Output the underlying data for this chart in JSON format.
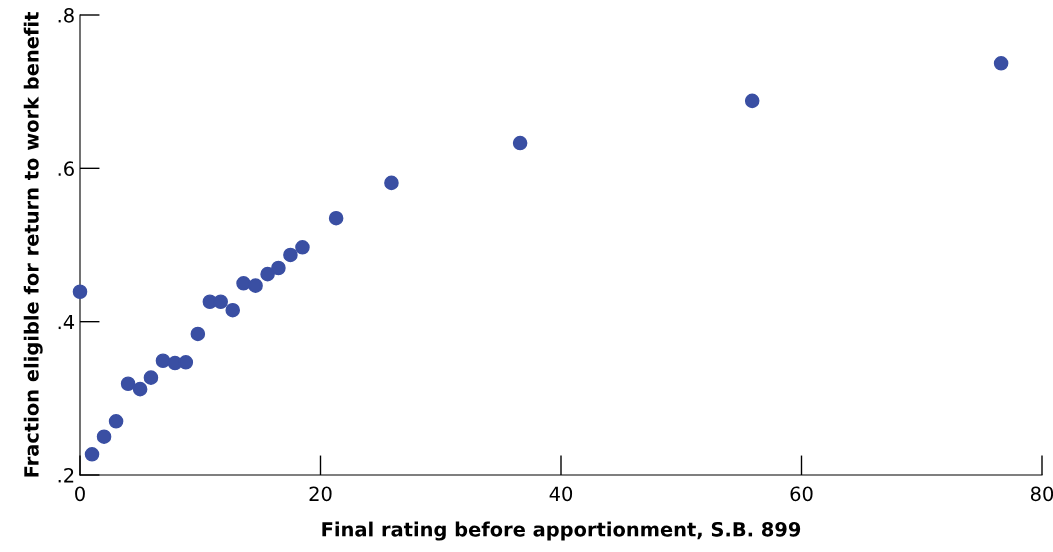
{
  "chart_data": {
    "type": "scatter",
    "xlabel": "Final rating before apportionment, S.B. 899",
    "ylabel": "Fraction eligible for return to work benefit",
    "x": [
      0,
      1.0,
      2.0,
      3.0,
      4.0,
      5.0,
      5.9,
      6.9,
      7.9,
      8.8,
      9.8,
      10.8,
      11.7,
      12.7,
      13.6,
      14.6,
      15.6,
      16.5,
      17.5,
      18.5,
      21.3,
      25.9,
      36.6,
      55.9,
      76.6
    ],
    "series": [
      {
        "color": "#3a4fa3",
        "values": [
          0.439,
          0.227,
          0.25,
          0.27,
          0.319,
          0.312,
          0.327,
          0.349,
          0.346,
          0.347,
          0.384,
          0.426,
          0.426,
          0.415,
          0.45,
          0.447,
          0.462,
          0.47,
          0.487,
          0.497,
          0.535,
          0.581,
          0.633,
          0.688,
          0.737
        ]
      }
    ],
    "xlim": [
      0,
      80
    ],
    "xticks": [
      0,
      20,
      40,
      60,
      80
    ],
    "ylim": [
      0.2,
      0.8
    ],
    "yticks": [
      {
        "value": 0.2,
        "label": ".2"
      },
      {
        "value": 0.4,
        "label": ".4"
      },
      {
        "value": 0.6,
        "label": ".6"
      },
      {
        "value": 0.8,
        "label": ".8"
      }
    ],
    "grid": false,
    "marker": "circle",
    "legend": false
  }
}
